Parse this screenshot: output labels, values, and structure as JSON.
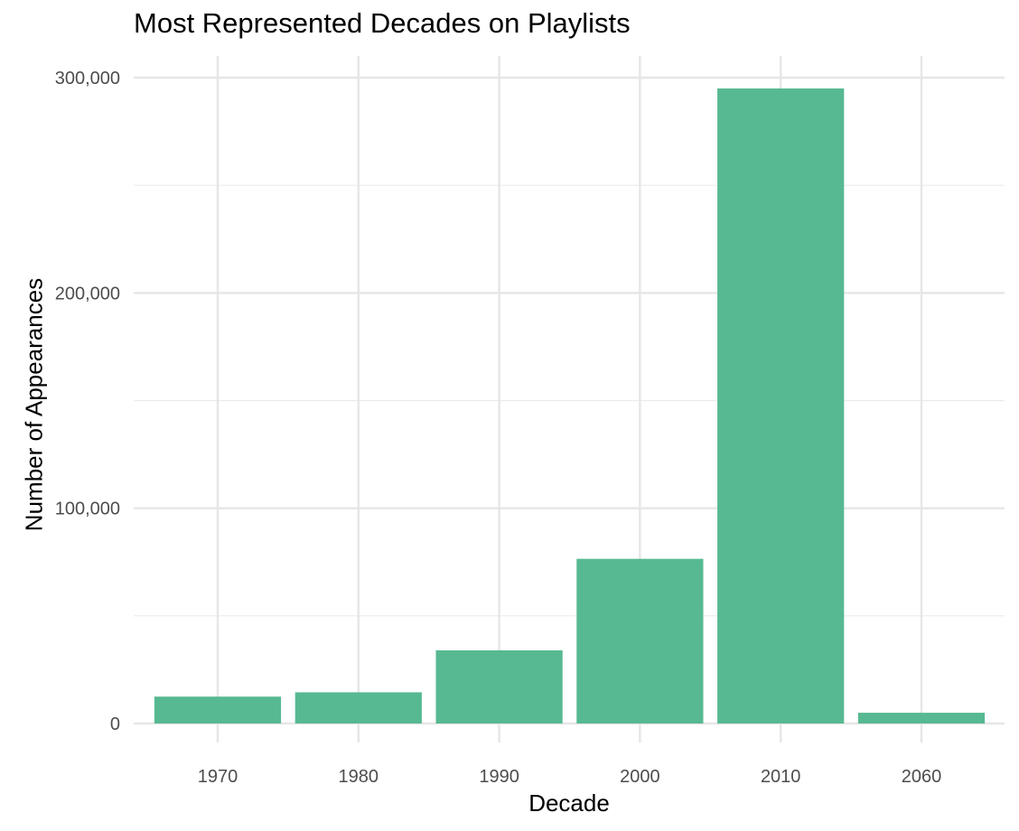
{
  "chart_data": {
    "type": "bar",
    "title": "Most Represented Decades on Playlists",
    "xlabel": "Decade",
    "ylabel": "Number of Appearances",
    "categories": [
      "1970",
      "1980",
      "1990",
      "2000",
      "2010",
      "2060"
    ],
    "values": [
      12500,
      14500,
      34000,
      76500,
      295000,
      5000
    ],
    "ylim": [
      0,
      300000
    ],
    "yticks": [
      0,
      100000,
      200000,
      300000
    ],
    "ytick_labels": [
      "0",
      "100,000",
      "200,000",
      "300,000"
    ],
    "bar_color": "#57b991",
    "grid": true,
    "legend": "none"
  }
}
